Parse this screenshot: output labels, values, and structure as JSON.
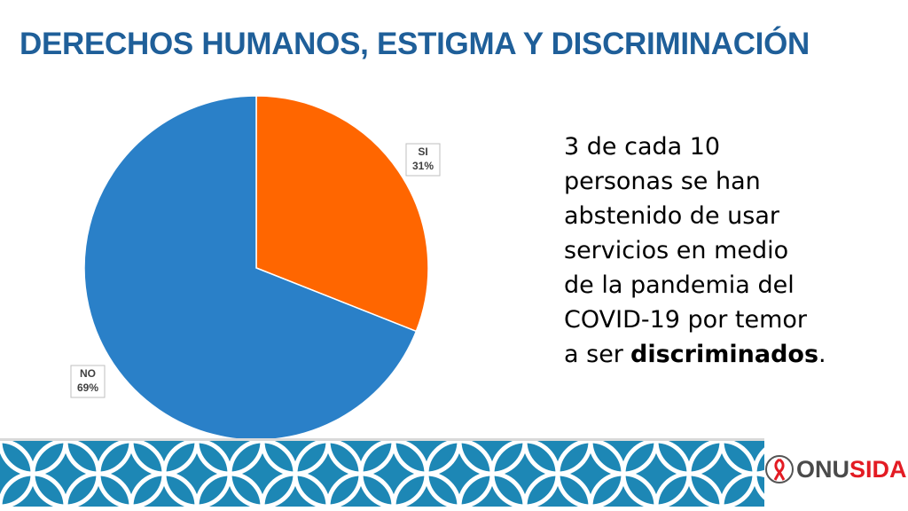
{
  "title": "DERECHOS HUMANOS, ESTIGMA Y DISCRIMINACIÓN",
  "chart_data": {
    "type": "pie",
    "categories": [
      "SI",
      "NO"
    ],
    "values": [
      31,
      69
    ],
    "value_labels": [
      "31%",
      "69%"
    ],
    "colors": [
      "#ff6600",
      "#2a80c8"
    ]
  },
  "paragraph": {
    "lines": [
      "3 de cada 10",
      "personas se han",
      "abstenido de usar",
      "servicios en medio",
      "de la pandemia del",
      "COVID-19 por temor"
    ],
    "last": [
      "a ser",
      "discriminados",
      "."
    ]
  },
  "logo": [
    "ONU",
    "SIDA"
  ]
}
